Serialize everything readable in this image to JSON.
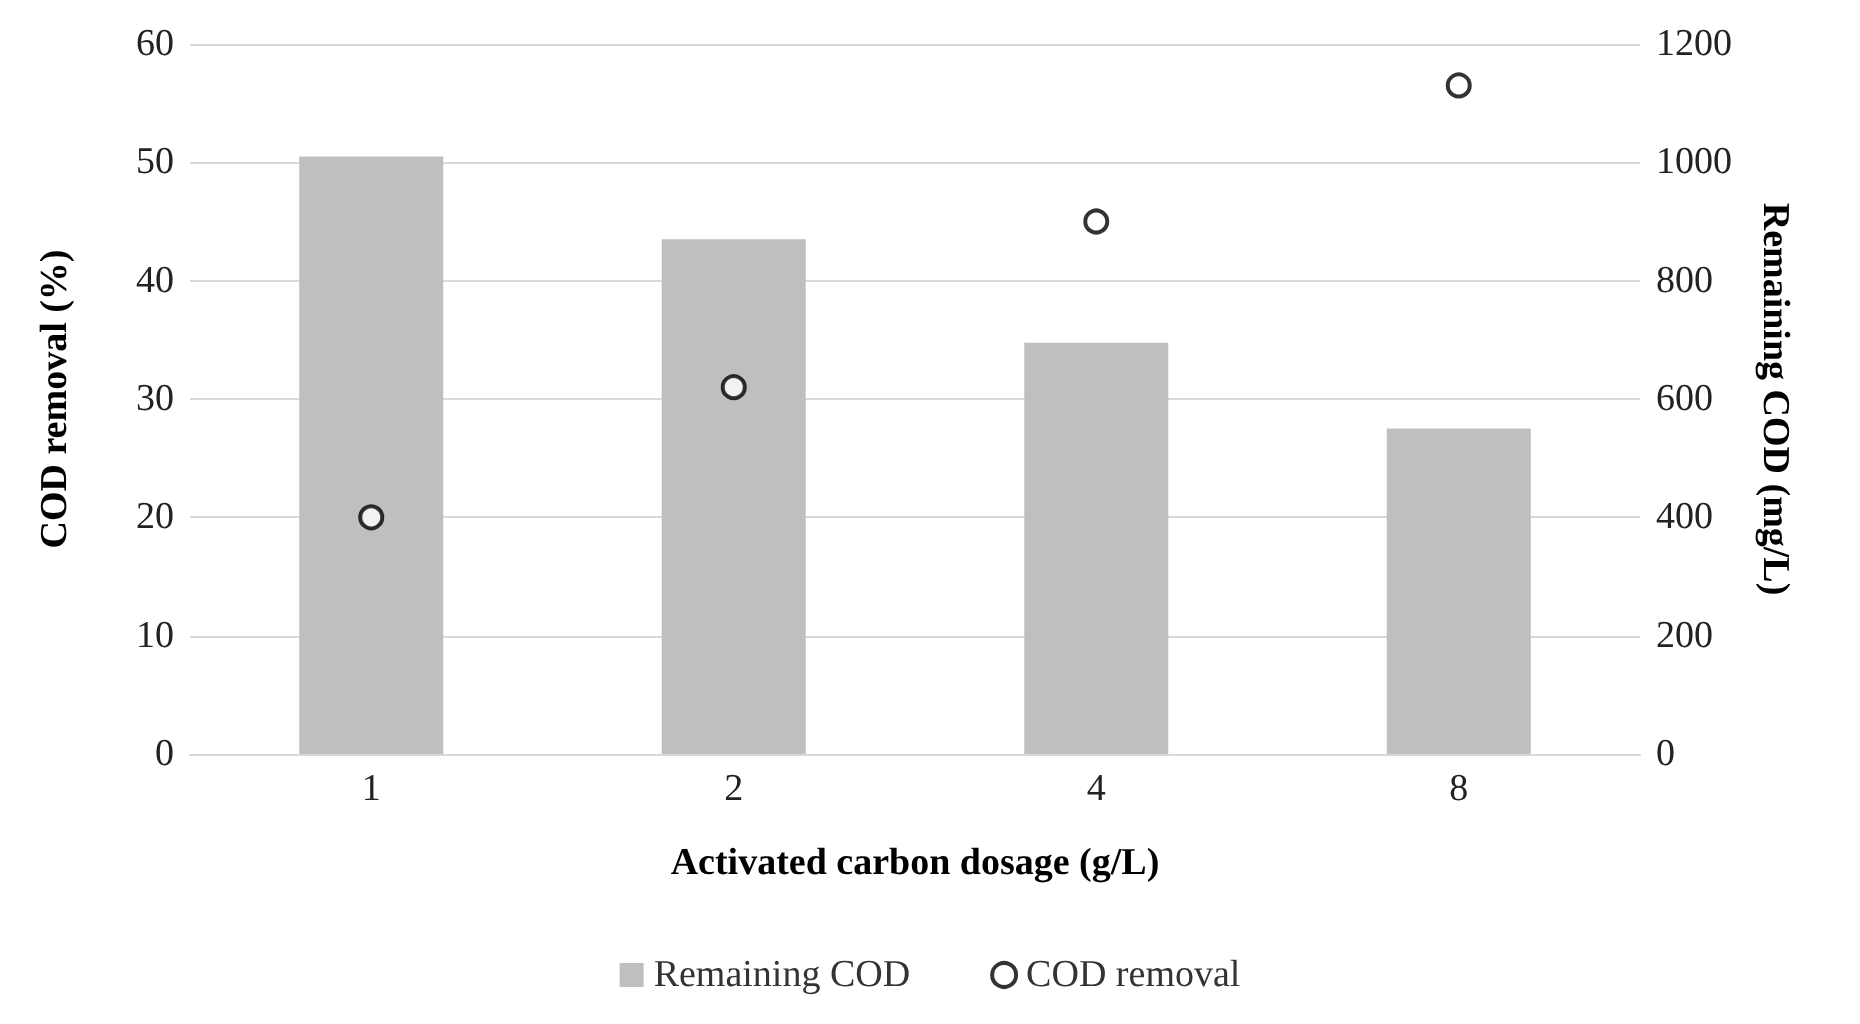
{
  "chart_data": {
    "type": "bar",
    "xlabel": "Activated carbon dosage (g/L)",
    "ylabel": "COD removal (%)",
    "y2label": "Remaining COD (mg/L)",
    "categories": [
      "1",
      "2",
      "4",
      "8"
    ],
    "series": [
      {
        "name": "Remaining COD",
        "color": "#bfbfbf",
        "axis": "y2",
        "values": [
          1010,
          870,
          695,
          550
        ]
      },
      {
        "name": "COD removal",
        "type": "scatter",
        "color": "#000000",
        "marker": "circle",
        "values": [
          20,
          31,
          45,
          56.5
        ]
      }
    ],
    "ylim": [
      0,
      60
    ],
    "yticks": [
      0,
      10,
      20,
      30,
      40,
      50,
      60
    ],
    "y2lim": [
      0,
      1200
    ],
    "y2ticks": [
      0,
      200,
      400,
      600,
      800,
      1000,
      1200
    ],
    "grid": "y",
    "legend": "bottom"
  }
}
